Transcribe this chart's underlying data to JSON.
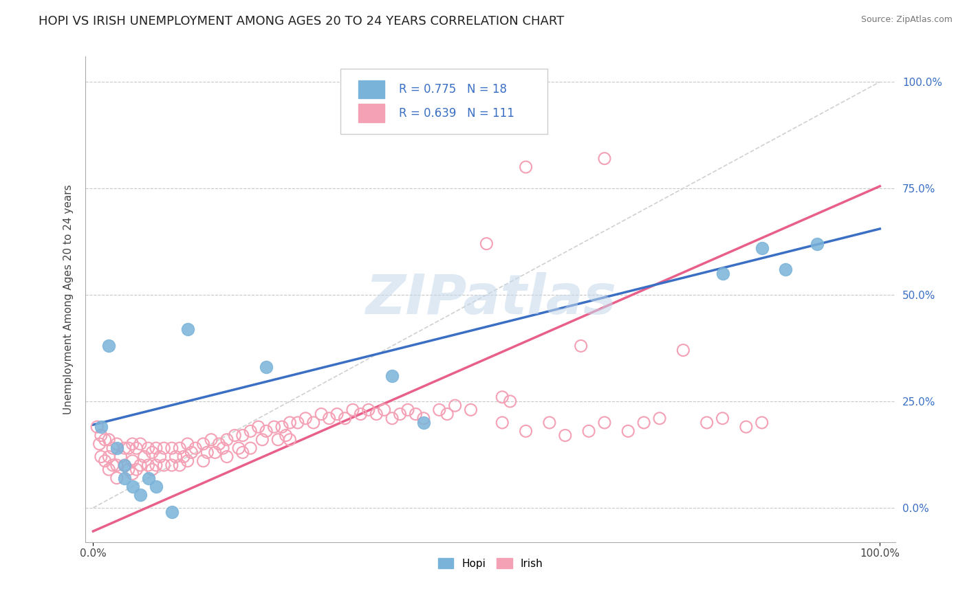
{
  "title": "HOPI VS IRISH UNEMPLOYMENT AMONG AGES 20 TO 24 YEARS CORRELATION CHART",
  "source": "Source: ZipAtlas.com",
  "ylabel": "Unemployment Among Ages 20 to 24 years",
  "watermark": "ZIPatlas",
  "hopi_color": "#7ab3d9",
  "hopi_edge_color": "#7ab3d9",
  "irish_color": "#f4a0b5",
  "irish_edge_color": "#f4a0b5",
  "hopi_line_color": "#3a6fc4",
  "irish_line_color": "#e8608a",
  "ref_line_color": "#d0d0d0",
  "grid_color": "#c8c8c8",
  "hopi_R": "0.775",
  "hopi_N": "18",
  "irish_R": "0.639",
  "irish_N": "111",
  "hopi_line_x0": 0.0,
  "hopi_line_y0": 0.195,
  "hopi_line_x1": 1.0,
  "hopi_line_y1": 0.655,
  "irish_line_x0": 0.0,
  "irish_line_y0": -0.055,
  "irish_line_x1": 1.0,
  "irish_line_y1": 0.755,
  "ytick_values": [
    0.0,
    0.25,
    0.5,
    0.75,
    1.0
  ],
  "ytick_labels": [
    "0.0%",
    "25.0%",
    "50.0%",
    "75.0%",
    "100.0%"
  ],
  "xtick_values": [
    0.0,
    1.0
  ],
  "xtick_labels": [
    "0.0%",
    "100.0%"
  ],
  "xlim": [
    -0.01,
    1.02
  ],
  "ylim": [
    -0.08,
    1.06
  ],
  "hopi_x": [
    0.01,
    0.02,
    0.03,
    0.04,
    0.04,
    0.05,
    0.06,
    0.07,
    0.08,
    0.1,
    0.12,
    0.22,
    0.38,
    0.42,
    0.8,
    0.85,
    0.88,
    0.92
  ],
  "hopi_y": [
    0.19,
    0.38,
    0.14,
    0.07,
    0.1,
    0.05,
    0.03,
    0.07,
    0.05,
    -0.01,
    0.42,
    0.33,
    0.31,
    0.2,
    0.55,
    0.61,
    0.56,
    0.62
  ],
  "irish_x": [
    0.005,
    0.008,
    0.01,
    0.01,
    0.015,
    0.015,
    0.02,
    0.02,
    0.02,
    0.025,
    0.025,
    0.03,
    0.03,
    0.03,
    0.035,
    0.04,
    0.04,
    0.045,
    0.045,
    0.05,
    0.05,
    0.05,
    0.055,
    0.055,
    0.06,
    0.06,
    0.065,
    0.07,
    0.07,
    0.075,
    0.075,
    0.08,
    0.08,
    0.085,
    0.09,
    0.09,
    0.1,
    0.1,
    0.105,
    0.11,
    0.11,
    0.115,
    0.12,
    0.12,
    0.125,
    0.13,
    0.14,
    0.14,
    0.145,
    0.15,
    0.155,
    0.16,
    0.165,
    0.17,
    0.17,
    0.18,
    0.185,
    0.19,
    0.19,
    0.2,
    0.2,
    0.21,
    0.215,
    0.22,
    0.23,
    0.235,
    0.24,
    0.245,
    0.25,
    0.25,
    0.26,
    0.27,
    0.28,
    0.29,
    0.3,
    0.31,
    0.32,
    0.33,
    0.34,
    0.35,
    0.36,
    0.37,
    0.38,
    0.39,
    0.4,
    0.41,
    0.42,
    0.44,
    0.45,
    0.46,
    0.48,
    0.5,
    0.52,
    0.52,
    0.53,
    0.55,
    0.55,
    0.58,
    0.6,
    0.62,
    0.63,
    0.65,
    0.65,
    0.68,
    0.7,
    0.72,
    0.75,
    0.78,
    0.8,
    0.83,
    0.85
  ],
  "irish_y": [
    0.19,
    0.15,
    0.17,
    0.12,
    0.16,
    0.11,
    0.16,
    0.12,
    0.09,
    0.14,
    0.1,
    0.15,
    0.1,
    0.07,
    0.12,
    0.14,
    0.1,
    0.14,
    0.09,
    0.15,
    0.11,
    0.08,
    0.14,
    0.09,
    0.15,
    0.1,
    0.12,
    0.14,
    0.1,
    0.13,
    0.09,
    0.14,
    0.1,
    0.12,
    0.14,
    0.1,
    0.14,
    0.1,
    0.12,
    0.14,
    0.1,
    0.12,
    0.15,
    0.11,
    0.13,
    0.14,
    0.15,
    0.11,
    0.13,
    0.16,
    0.13,
    0.15,
    0.14,
    0.16,
    0.12,
    0.17,
    0.14,
    0.17,
    0.13,
    0.18,
    0.14,
    0.19,
    0.16,
    0.18,
    0.19,
    0.16,
    0.19,
    0.17,
    0.2,
    0.16,
    0.2,
    0.21,
    0.2,
    0.22,
    0.21,
    0.22,
    0.21,
    0.23,
    0.22,
    0.23,
    0.22,
    0.23,
    0.21,
    0.22,
    0.23,
    0.22,
    0.21,
    0.23,
    0.22,
    0.24,
    0.23,
    0.62,
    0.2,
    0.26,
    0.25,
    0.8,
    0.18,
    0.2,
    0.17,
    0.38,
    0.18,
    0.82,
    0.2,
    0.18,
    0.2,
    0.21,
    0.37,
    0.2,
    0.21,
    0.19,
    0.2
  ]
}
